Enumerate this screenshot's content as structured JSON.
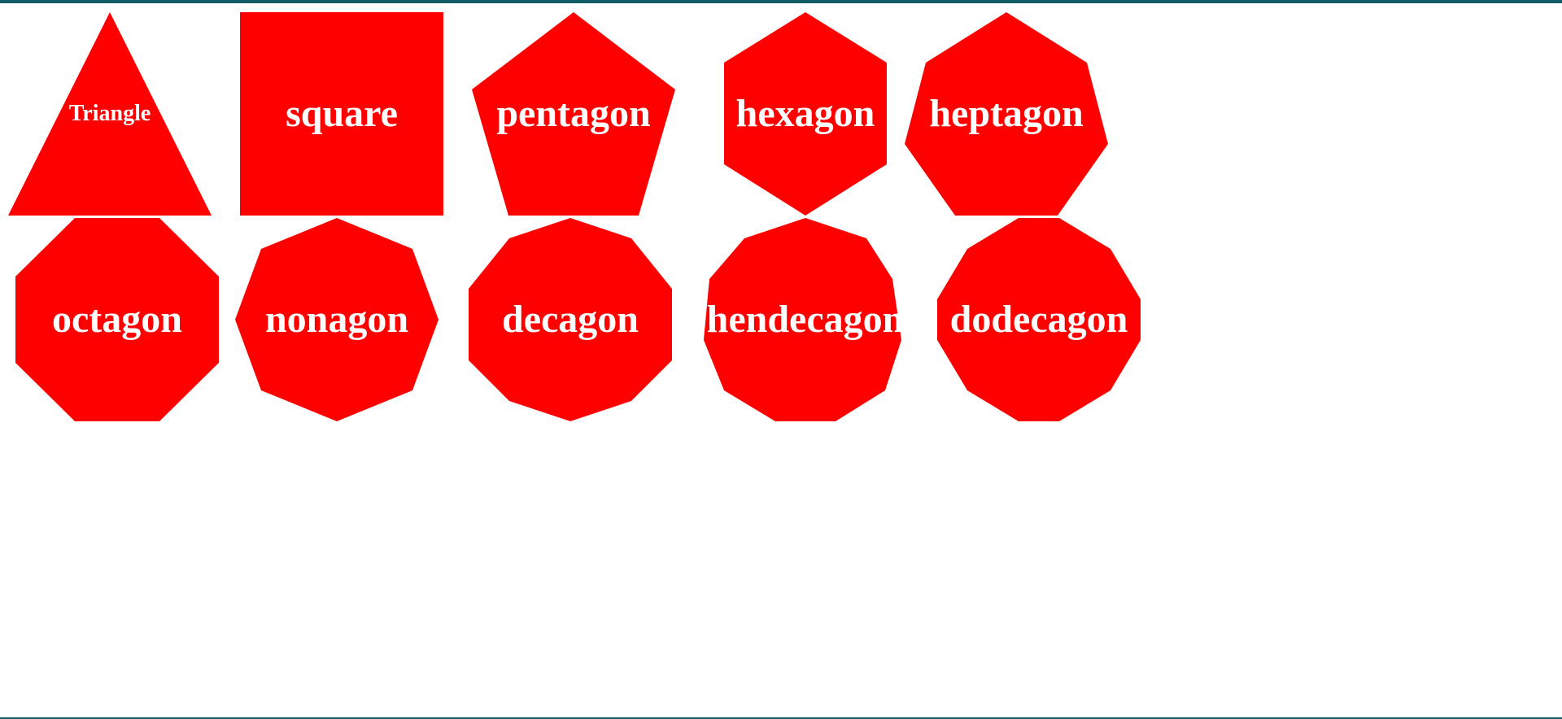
{
  "colors": {
    "shape_fill": "#ff0000",
    "label_text": "#ffffff",
    "frame_border": "#0f5c66"
  },
  "shapes": [
    {
      "label": "Triangle",
      "sides": 3
    },
    {
      "label": "square",
      "sides": 4
    },
    {
      "label": "pentagon",
      "sides": 5
    },
    {
      "label": "hexagon",
      "sides": 6
    },
    {
      "label": "heptagon",
      "sides": 7
    },
    {
      "label": "octagon",
      "sides": 8
    },
    {
      "label": "nonagon",
      "sides": 9
    },
    {
      "label": "decagon",
      "sides": 10
    },
    {
      "label": "hendecagon",
      "sides": 11
    },
    {
      "label": "dodecagon",
      "sides": 12
    }
  ]
}
